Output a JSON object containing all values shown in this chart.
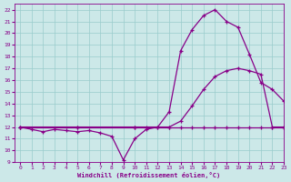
{
  "bg_color": "#cce8e8",
  "line_color": "#880088",
  "grid_color": "#99cccc",
  "xlabel": "Windchill (Refroidissement éolien,°C)",
  "xlim": [
    -0.5,
    23
  ],
  "ylim": [
    9,
    22.5
  ],
  "xticks": [
    0,
    1,
    2,
    3,
    4,
    5,
    6,
    7,
    8,
    9,
    10,
    11,
    12,
    13,
    14,
    15,
    16,
    17,
    18,
    19,
    20,
    21,
    22,
    23
  ],
  "yticks": [
    9,
    10,
    11,
    12,
    13,
    14,
    15,
    16,
    17,
    18,
    19,
    20,
    21,
    22
  ],
  "curve1_x": [
    0,
    1,
    2,
    3,
    4,
    5,
    6,
    7,
    8,
    9,
    10,
    11,
    12,
    13,
    14,
    15,
    16,
    17,
    18,
    19,
    20,
    21,
    22,
    23
  ],
  "curve1_y": [
    12,
    11.8,
    11.6,
    11.8,
    11.7,
    11.6,
    11.7,
    11.5,
    11.2,
    9.2,
    11.0,
    11.8,
    12.0,
    13.3,
    18.5,
    20.3,
    21.5,
    22.0,
    21.0,
    20.5,
    18.2,
    15.8,
    15.2,
    14.2
  ],
  "curve2_x": [
    0,
    5,
    10,
    13,
    14,
    15,
    16,
    17,
    18,
    19,
    20,
    21,
    22,
    23
  ],
  "curve2_y": [
    12,
    12,
    12,
    12,
    12.5,
    13.8,
    15.2,
    16.3,
    16.8,
    17.0,
    16.8,
    16.5,
    12.0,
    12.0
  ],
  "curve3_x": [
    0,
    5,
    10,
    11,
    12,
    13,
    14,
    15,
    16,
    17,
    18,
    19,
    20,
    21,
    22,
    23
  ],
  "curve3_y": [
    12,
    12,
    12,
    12,
    12,
    12,
    12,
    12,
    12,
    12,
    12,
    12,
    12,
    12,
    12,
    12
  ]
}
